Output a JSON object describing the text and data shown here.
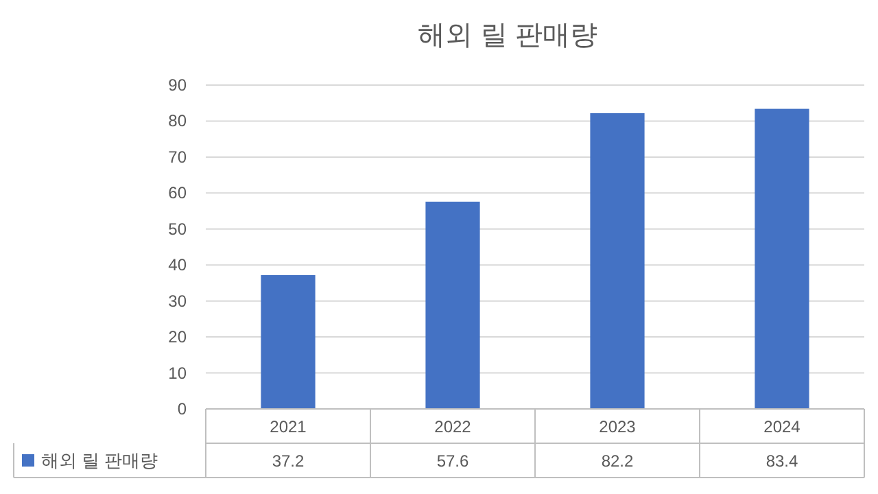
{
  "chart_data": {
    "type": "bar",
    "title": "해외 릴 판매량",
    "categories": [
      "2021",
      "2022",
      "2023",
      "2024"
    ],
    "series": [
      {
        "name": "해외 릴 판매량",
        "color": "#4472c4",
        "values": [
          37.2,
          57.6,
          82.2,
          83.4
        ]
      }
    ],
    "ylim": [
      0,
      90
    ],
    "yticks": [
      0,
      10,
      20,
      30,
      40,
      50,
      60,
      70,
      80,
      90
    ],
    "grid": "y",
    "legend": "bottom",
    "data_labels": true
  }
}
